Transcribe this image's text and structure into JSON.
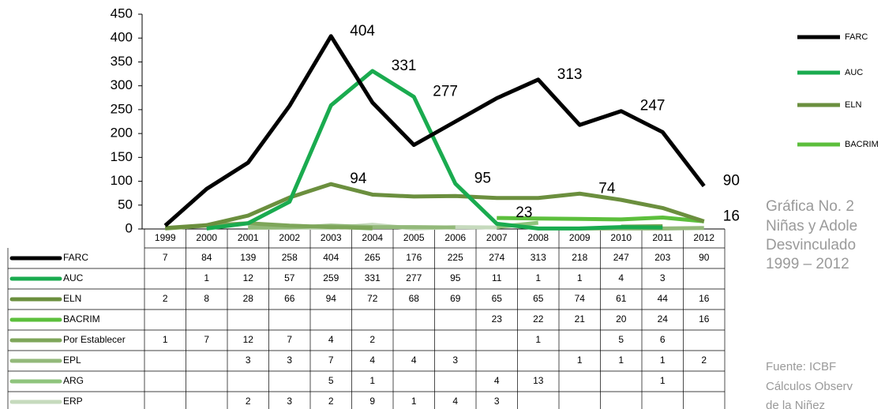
{
  "chart_data": {
    "type": "line",
    "categories": [
      "1999",
      "2000",
      "2001",
      "2002",
      "2003",
      "2004",
      "2005",
      "2006",
      "2007",
      "2008",
      "2009",
      "2010",
      "2011",
      "2012"
    ],
    "ylim": [
      0,
      450
    ],
    "yticks": [
      0,
      50,
      100,
      150,
      200,
      250,
      300,
      350,
      400,
      450
    ],
    "series": [
      {
        "name": "FARC",
        "color": "#000000",
        "values": [
          7,
          84,
          139,
          258,
          404,
          265,
          176,
          225,
          274,
          313,
          218,
          247,
          203,
          90
        ],
        "value_labels": [
          null,
          null,
          null,
          null,
          "404",
          null,
          null,
          null,
          null,
          "313",
          null,
          "247",
          null,
          "90"
        ]
      },
      {
        "name": "AUC",
        "color": "#1aab4f",
        "values": [
          null,
          1,
          12,
          57,
          259,
          331,
          277,
          95,
          11,
          1,
          1,
          4,
          3,
          null
        ],
        "value_labels": [
          null,
          null,
          null,
          null,
          null,
          "331",
          "277",
          "95",
          null,
          null,
          null,
          null,
          null,
          null
        ]
      },
      {
        "name": "ELN",
        "color": "#6b8f3e",
        "values": [
          2,
          8,
          28,
          66,
          94,
          72,
          68,
          69,
          65,
          65,
          74,
          61,
          44,
          16
        ],
        "value_labels": [
          null,
          null,
          null,
          null,
          "94",
          null,
          null,
          null,
          null,
          null,
          "74",
          null,
          null,
          "16"
        ]
      },
      {
        "name": "BACRIM",
        "color": "#5cbf3c",
        "values": [
          null,
          null,
          null,
          null,
          null,
          null,
          null,
          null,
          23,
          22,
          21,
          20,
          24,
          16
        ],
        "value_labels": [
          null,
          null,
          null,
          null,
          null,
          null,
          null,
          null,
          "23",
          null,
          null,
          null,
          null,
          null
        ]
      },
      {
        "name": "Por Establecer",
        "color": "#7ea65a",
        "values": [
          1,
          7,
          12,
          7,
          4,
          2,
          null,
          null,
          null,
          1,
          null,
          5,
          6,
          null
        ]
      },
      {
        "name": "EPL",
        "color": "#93b97a",
        "values": [
          null,
          null,
          3,
          3,
          7,
          4,
          4,
          3,
          null,
          null,
          1,
          1,
          1,
          2
        ]
      },
      {
        "name": "ARG",
        "color": "#8fc47c",
        "values": [
          null,
          null,
          null,
          null,
          5,
          1,
          null,
          null,
          4,
          13,
          null,
          null,
          1,
          null
        ]
      },
      {
        "name": "ERP",
        "color": "#c6dabd",
        "values": [
          null,
          null,
          2,
          3,
          2,
          9,
          1,
          4,
          3,
          null,
          null,
          null,
          null,
          null
        ]
      }
    ]
  },
  "caption": {
    "title": [
      "Gráfica No. 2",
      "Niñas y Adole",
      "Desvinculado",
      "1999 – 2012"
    ],
    "source": [
      "Fuente: ICBF",
      "Cálculos Observ",
      "de la Niñez"
    ]
  }
}
